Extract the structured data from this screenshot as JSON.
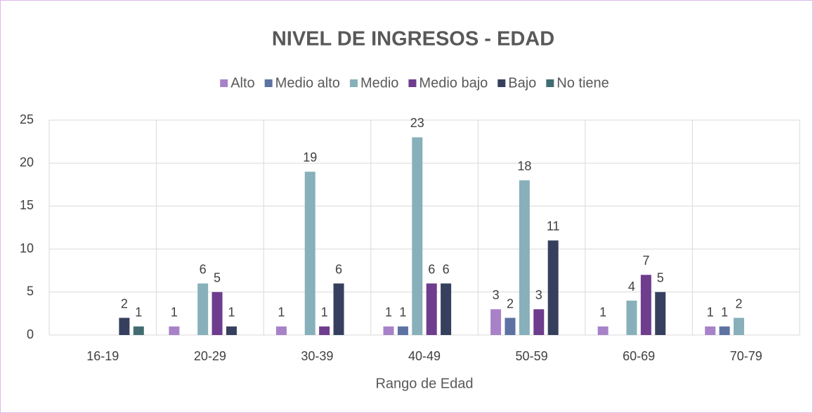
{
  "chart_data": {
    "type": "bar",
    "title": "NIVEL DE INGRESOS - EDAD",
    "x_label": "Rango de Edad",
    "categories": [
      "16-19",
      "20-29",
      "30-39",
      "40-49",
      "50-59",
      "60-69",
      "70-79"
    ],
    "series": [
      {
        "name": "Alto",
        "color": "#a882c8",
        "values": [
          null,
          1,
          1,
          1,
          3,
          1,
          1
        ]
      },
      {
        "name": "Medio alto",
        "color": "#5d72a3",
        "values": [
          null,
          null,
          null,
          1,
          2,
          null,
          1
        ]
      },
      {
        "name": "Medio",
        "color": "#88b0bb",
        "values": [
          null,
          6,
          19,
          23,
          18,
          4,
          2
        ]
      },
      {
        "name": "Medio bajo",
        "color": "#6e3d8e",
        "values": [
          null,
          5,
          1,
          6,
          3,
          7,
          null
        ]
      },
      {
        "name": "Bajo",
        "color": "#36405e",
        "values": [
          2,
          1,
          6,
          6,
          11,
          5,
          null
        ]
      },
      {
        "name": "No tiene",
        "color": "#416d72",
        "values": [
          1,
          null,
          null,
          null,
          null,
          null,
          null
        ]
      }
    ],
    "ylim": [
      0,
      25
    ],
    "yticks": [
      0,
      5,
      10,
      15,
      20,
      25
    ],
    "grid": true,
    "legend": "top"
  }
}
